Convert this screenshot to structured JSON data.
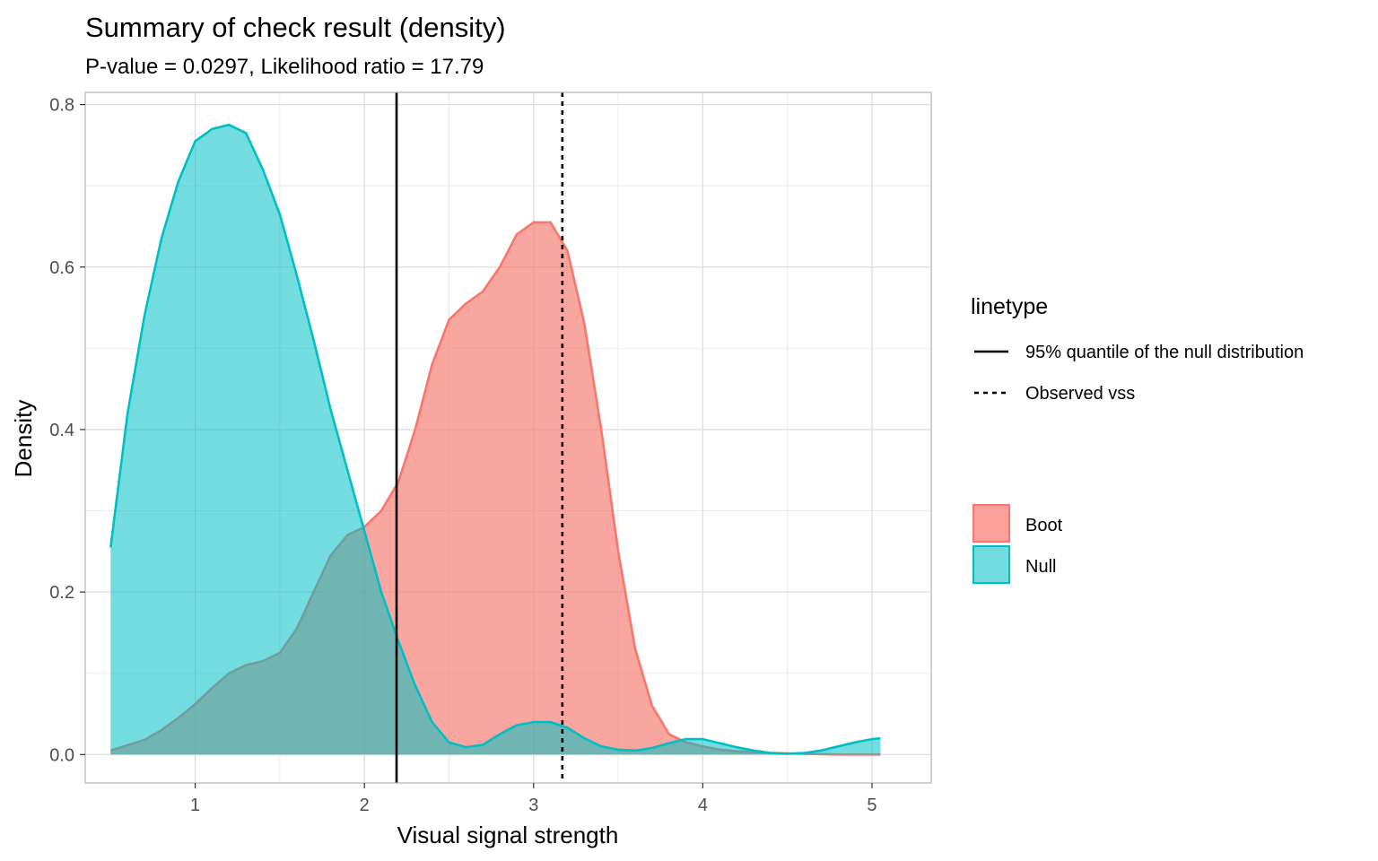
{
  "chart_data": {
    "type": "area",
    "title": "Summary of check result (density)",
    "subtitle": "P-value = 0.0297, Likelihood ratio = 17.79",
    "xlabel": "Visual signal strength",
    "ylabel": "Density",
    "xlim": [
      0.35,
      5.35
    ],
    "ylim": [
      -0.035,
      0.815
    ],
    "x_ticks": [
      1,
      2,
      3,
      4,
      5
    ],
    "y_ticks": [
      0.0,
      0.2,
      0.4,
      0.6,
      0.8
    ],
    "x_tick_labels": [
      "1",
      "2",
      "3",
      "4",
      "5"
    ],
    "y_tick_labels": [
      "0.0",
      "0.2",
      "0.4",
      "0.6",
      "0.8"
    ],
    "grid": true,
    "legend_placement": "right",
    "series": [
      {
        "name": "Boot",
        "color": "#F8766D",
        "x": [
          0.5,
          0.7,
          0.8,
          0.9,
          1.0,
          1.1,
          1.2,
          1.3,
          1.4,
          1.5,
          1.6,
          1.7,
          1.8,
          1.9,
          2.0,
          2.1,
          2.2,
          2.3,
          2.4,
          2.5,
          2.6,
          2.7,
          2.8,
          2.9,
          3.0,
          3.1,
          3.2,
          3.3,
          3.4,
          3.5,
          3.6,
          3.7,
          3.8,
          3.9,
          4.0,
          4.1,
          4.2,
          4.4,
          4.6,
          4.8,
          5.05
        ],
        "y": [
          0.005,
          0.018,
          0.03,
          0.045,
          0.062,
          0.082,
          0.1,
          0.11,
          0.115,
          0.125,
          0.155,
          0.2,
          0.245,
          0.27,
          0.28,
          0.3,
          0.335,
          0.4,
          0.48,
          0.535,
          0.555,
          0.57,
          0.6,
          0.64,
          0.655,
          0.655,
          0.62,
          0.53,
          0.4,
          0.25,
          0.13,
          0.06,
          0.025,
          0.015,
          0.01,
          0.006,
          0.004,
          0.002,
          0.001,
          0.0,
          0.0
        ]
      },
      {
        "name": "Null",
        "color": "#00BFC4",
        "x": [
          0.5,
          0.6,
          0.7,
          0.8,
          0.9,
          1.0,
          1.1,
          1.2,
          1.3,
          1.4,
          1.5,
          1.6,
          1.7,
          1.8,
          1.9,
          2.0,
          2.1,
          2.2,
          2.3,
          2.4,
          2.5,
          2.6,
          2.7,
          2.8,
          2.9,
          3.0,
          3.1,
          3.2,
          3.3,
          3.4,
          3.5,
          3.6,
          3.7,
          3.8,
          3.9,
          4.0,
          4.1,
          4.2,
          4.3,
          4.4,
          4.5,
          4.6,
          4.7,
          4.8,
          4.9,
          5.0,
          5.05
        ],
        "y": [
          0.255,
          0.42,
          0.54,
          0.635,
          0.705,
          0.755,
          0.77,
          0.775,
          0.765,
          0.72,
          0.665,
          0.59,
          0.51,
          0.425,
          0.35,
          0.275,
          0.2,
          0.14,
          0.085,
          0.04,
          0.015,
          0.009,
          0.012,
          0.025,
          0.036,
          0.04,
          0.04,
          0.033,
          0.02,
          0.01,
          0.006,
          0.005,
          0.008,
          0.014,
          0.019,
          0.019,
          0.014,
          0.009,
          0.005,
          0.002,
          0.001,
          0.002,
          0.005,
          0.01,
          0.015,
          0.019,
          0.02
        ]
      }
    ],
    "vlines": [
      {
        "name": "95% quantile of the null distribution",
        "x": 2.19,
        "style": "solid"
      },
      {
        "name": "Observed vss",
        "x": 3.17,
        "style": "dashed"
      }
    ],
    "legends": {
      "linetype_title": "linetype",
      "linetype_items": [
        "95% quantile of the null distribution",
        "Observed vss"
      ],
      "fill_items": [
        "Boot",
        "Null"
      ]
    }
  }
}
